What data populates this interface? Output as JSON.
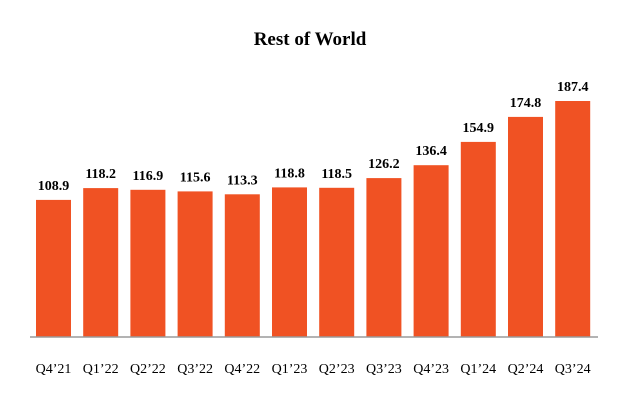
{
  "chart_data": {
    "type": "bar",
    "title": "Rest of World",
    "categories": [
      "Q4’21",
      "Q1’22",
      "Q2’22",
      "Q3’22",
      "Q4’22",
      "Q1’23",
      "Q2’23",
      "Q3’23",
      "Q4’23",
      "Q1’24",
      "Q2’24",
      "Q3’24"
    ],
    "values": [
      108.9,
      118.2,
      116.9,
      115.6,
      113.3,
      118.8,
      118.5,
      126.2,
      136.4,
      154.9,
      174.8,
      187.4
    ],
    "value_labels": [
      "108.9",
      "118.2",
      "116.9",
      "115.6",
      "113.3",
      "118.8",
      "118.5",
      "126.2",
      "136.4",
      "154.9",
      "174.8",
      "187.4"
    ],
    "xlabel": "",
    "ylabel": "",
    "ylim": [
      0,
      187.4
    ],
    "grid": false,
    "legend": "none",
    "bar_color": "#F05223",
    "axis_color": "#9a9a9a"
  }
}
